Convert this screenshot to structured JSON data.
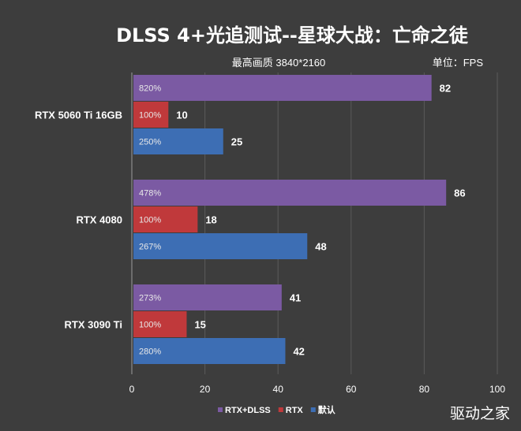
{
  "chart_data": {
    "type": "bar",
    "orientation": "horizontal",
    "title": "DLSS 4+光追测试--星球大战：亡命之徒",
    "subtitle": "最高画质 3840*2160",
    "unit_label": "单位：FPS",
    "categories": [
      "RTX 5060 Ti 16GB",
      "RTX 4080",
      "RTX 3090 Ti"
    ],
    "series": [
      {
        "name": "RTX+DLSS",
        "color": "#7b5aa3",
        "values": [
          82,
          86,
          41
        ],
        "bar_labels": [
          "820%",
          "478%",
          "273%"
        ]
      },
      {
        "name": "RTX",
        "color": "#c0393b",
        "values": [
          10,
          18,
          15
        ],
        "bar_labels": [
          "100%",
          "100%",
          "100%"
        ]
      },
      {
        "name": "默认",
        "color": "#3d6eb4",
        "values": [
          25,
          48,
          42
        ],
        "bar_labels": [
          "250%",
          "267%",
          "280%"
        ]
      }
    ],
    "xlim": [
      0,
      100
    ],
    "xticks": [
      "0",
      "20",
      "40",
      "60",
      "80",
      "100"
    ],
    "grid": true,
    "legend_position": "bottom"
  },
  "watermark": "驱动之家"
}
